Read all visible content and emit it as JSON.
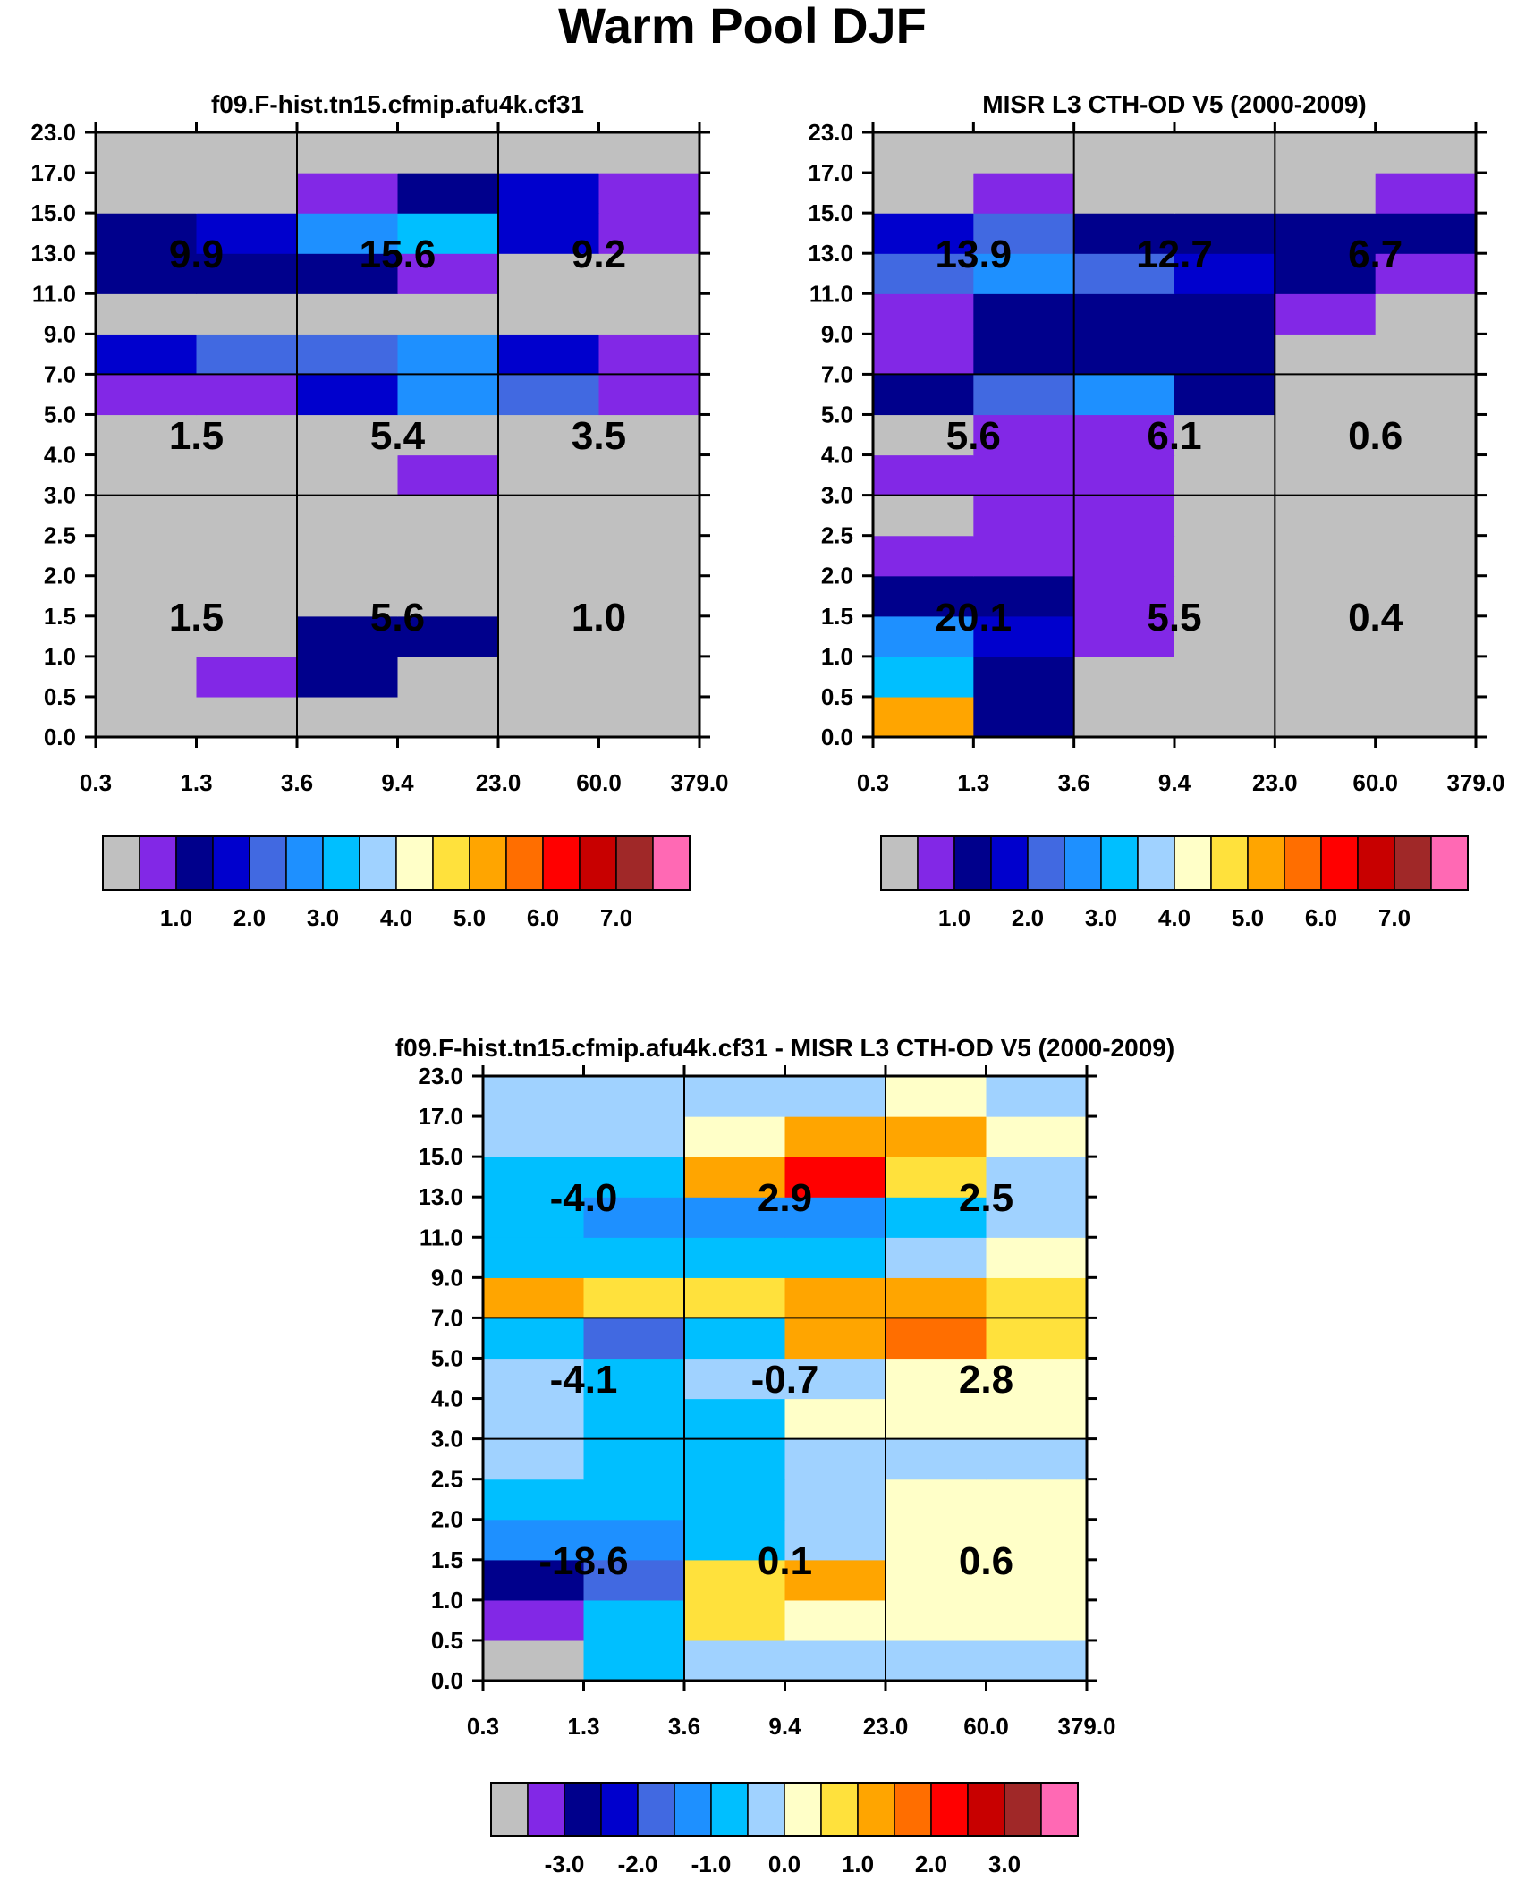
{
  "figure_title": "Warm Pool DJF",
  "x_ticks": [
    "0.3",
    "1.3",
    "3.6",
    "9.4",
    "23.0",
    "60.0",
    "379.0"
  ],
  "y_ticks": [
    "0.0",
    "0.5",
    "1.0",
    "1.5",
    "2.0",
    "2.5",
    "3.0",
    "4.0",
    "5.0",
    "7.0",
    "9.0",
    "11.0",
    "13.0",
    "15.0",
    "17.0",
    "23.0"
  ],
  "colors": {
    "gray": "#c0c0c0",
    "c1": "#8228e6",
    "c2": "#00008c",
    "c3": "#0000cd",
    "c4": "#4169e1",
    "c5": "#1e90ff",
    "c6": "#00bfff",
    "c7": "#a0d2ff",
    "c8": "#ffffc8",
    "c9": "#ffe13c",
    "c10": "#ffa500",
    "c11": "#ff6e00",
    "c12": "#ff0000",
    "c13": "#c80000",
    "c14": "#a02828",
    "c15": "#ff69b4"
  },
  "colorbars": {
    "abs": {
      "swatches": [
        "gray",
        "c1",
        "c2",
        "c3",
        "c4",
        "c5",
        "c6",
        "c7",
        "c8",
        "c9",
        "c10",
        "c11",
        "c12",
        "c13",
        "c14",
        "c15"
      ],
      "labels": [
        "1.0",
        "2.0",
        "3.0",
        "4.0",
        "5.0",
        "6.0",
        "7.0"
      ]
    },
    "diff": {
      "swatches": [
        "gray",
        "c1",
        "c2",
        "c3",
        "c4",
        "c5",
        "c6",
        "c7",
        "c8",
        "c9",
        "c10",
        "c11",
        "c12",
        "c13",
        "c14",
        "c15"
      ],
      "labels": [
        "-3.0",
        "-2.0",
        "-1.0",
        "0.0",
        "1.0",
        "2.0",
        "3.0"
      ]
    }
  },
  "chart_data": [
    {
      "type": "heatmap",
      "title": "f09.F-hist.tn15.cfmip.afu4k.cf31",
      "xlabel": "",
      "ylabel": "",
      "colorbar": "abs",
      "grid_rows_bottom_to_top": [
        [
          "gray",
          "gray",
          "gray",
          "gray",
          "gray",
          "gray"
        ],
        [
          "gray",
          "c1",
          "c2",
          "gray",
          "gray",
          "gray"
        ],
        [
          "gray",
          "gray",
          "c2",
          "c2",
          "gray",
          "gray"
        ],
        [
          "gray",
          "gray",
          "gray",
          "gray",
          "gray",
          "gray"
        ],
        [
          "gray",
          "gray",
          "gray",
          "gray",
          "gray",
          "gray"
        ],
        [
          "gray",
          "gray",
          "gray",
          "gray",
          "gray",
          "gray"
        ],
        [
          "gray",
          "gray",
          "gray",
          "c1",
          "gray",
          "gray"
        ],
        [
          "gray",
          "gray",
          "gray",
          "gray",
          "gray",
          "gray"
        ],
        [
          "c1",
          "c1",
          "c3",
          "c5",
          "c4",
          "c1"
        ],
        [
          "c3",
          "c4",
          "c4",
          "c5",
          "c3",
          "c1"
        ],
        [
          "gray",
          "gray",
          "gray",
          "gray",
          "gray",
          "gray"
        ],
        [
          "c2",
          "c2",
          "c2",
          "c1",
          "gray",
          "gray"
        ],
        [
          "c2",
          "c3",
          "c5",
          "c6",
          "c3",
          "c1"
        ],
        [
          "gray",
          "gray",
          "c1",
          "c2",
          "c3",
          "c1"
        ],
        [
          "gray",
          "gray",
          "gray",
          "gray",
          "gray",
          "gray"
        ]
      ],
      "block_totals": [
        {
          "label": "9.9",
          "col": 0,
          "band": "high"
        },
        {
          "label": "15.6",
          "col": 1,
          "band": "high"
        },
        {
          "label": "9.2",
          "col": 2,
          "band": "high"
        },
        {
          "label": "1.5",
          "col": 0,
          "band": "mid"
        },
        {
          "label": "5.4",
          "col": 1,
          "band": "mid"
        },
        {
          "label": "3.5",
          "col": 2,
          "band": "mid"
        },
        {
          "label": "1.5",
          "col": 0,
          "band": "low"
        },
        {
          "label": "5.6",
          "col": 1,
          "band": "low"
        },
        {
          "label": "1.0",
          "col": 2,
          "band": "low"
        }
      ]
    },
    {
      "type": "heatmap",
      "title": "MISR L3 CTH-OD V5 (2000-2009)",
      "xlabel": "",
      "ylabel": "",
      "colorbar": "abs",
      "grid_rows_bottom_to_top": [
        [
          "c10",
          "c2",
          "gray",
          "gray",
          "gray",
          "gray"
        ],
        [
          "c6",
          "c2",
          "gray",
          "gray",
          "gray",
          "gray"
        ],
        [
          "c5",
          "c3",
          "c1",
          "gray",
          "gray",
          "gray"
        ],
        [
          "c2",
          "c2",
          "c1",
          "gray",
          "gray",
          "gray"
        ],
        [
          "c1",
          "c1",
          "c1",
          "gray",
          "gray",
          "gray"
        ],
        [
          "gray",
          "c1",
          "c1",
          "gray",
          "gray",
          "gray"
        ],
        [
          "c1",
          "c1",
          "c1",
          "gray",
          "gray",
          "gray"
        ],
        [
          "gray",
          "c1",
          "c1",
          "gray",
          "gray",
          "gray"
        ],
        [
          "c2",
          "c4",
          "c5",
          "c2",
          "gray",
          "gray"
        ],
        [
          "c1",
          "c2",
          "c2",
          "c2",
          "gray",
          "gray"
        ],
        [
          "c1",
          "c2",
          "c2",
          "c2",
          "c1",
          "gray"
        ],
        [
          "c4",
          "c5",
          "c4",
          "c3",
          "c2",
          "c1"
        ],
        [
          "c3",
          "c4",
          "c2",
          "c2",
          "c2",
          "c2"
        ],
        [
          "gray",
          "c1",
          "gray",
          "gray",
          "gray",
          "c1"
        ],
        [
          "gray",
          "gray",
          "gray",
          "gray",
          "gray",
          "gray"
        ]
      ],
      "block_totals": [
        {
          "label": "13.9",
          "col": 0,
          "band": "high"
        },
        {
          "label": "12.7",
          "col": 1,
          "band": "high"
        },
        {
          "label": "6.7",
          "col": 2,
          "band": "high"
        },
        {
          "label": "5.6",
          "col": 0,
          "band": "mid"
        },
        {
          "label": "6.1",
          "col": 1,
          "band": "mid"
        },
        {
          "label": "0.6",
          "col": 2,
          "band": "mid"
        },
        {
          "label": "20.1",
          "col": 0,
          "band": "low"
        },
        {
          "label": "5.5",
          "col": 1,
          "band": "low"
        },
        {
          "label": "0.4",
          "col": 2,
          "band": "low"
        }
      ]
    },
    {
      "type": "heatmap",
      "title": "f09.F-hist.tn15.cfmip.afu4k.cf31 - MISR L3 CTH-OD V5 (2000-2009)",
      "xlabel": "",
      "ylabel": "",
      "colorbar": "diff",
      "grid_rows_bottom_to_top": [
        [
          "gray",
          "c6",
          "c7",
          "c7",
          "c7",
          "c7"
        ],
        [
          "c1",
          "c6",
          "c9",
          "c8",
          "c8",
          "c8"
        ],
        [
          "c2",
          "c4",
          "c9",
          "c10",
          "c8",
          "c8"
        ],
        [
          "c5",
          "c5",
          "c6",
          "c7",
          "c8",
          "c8"
        ],
        [
          "c6",
          "c6",
          "c6",
          "c7",
          "c8",
          "c8"
        ],
        [
          "c7",
          "c6",
          "c6",
          "c7",
          "c7",
          "c7"
        ],
        [
          "c7",
          "c6",
          "c6",
          "c8",
          "c8",
          "c8"
        ],
        [
          "c7",
          "c6",
          "c7",
          "c7",
          "c8",
          "c8"
        ],
        [
          "c6",
          "c4",
          "c6",
          "c10",
          "c11",
          "c9"
        ],
        [
          "c10",
          "c9",
          "c9",
          "c10",
          "c10",
          "c9"
        ],
        [
          "c6",
          "c6",
          "c6",
          "c6",
          "c7",
          "c8"
        ],
        [
          "c6",
          "c5",
          "c5",
          "c5",
          "c6",
          "c7"
        ],
        [
          "c6",
          "c6",
          "c10",
          "c12",
          "c9",
          "c7"
        ],
        [
          "c7",
          "c7",
          "c8",
          "c10",
          "c10",
          "c8"
        ],
        [
          "c7",
          "c7",
          "c7",
          "c7",
          "c8",
          "c7"
        ]
      ],
      "block_totals": [
        {
          "label": "-4.0",
          "col": 0,
          "band": "high"
        },
        {
          "label": "2.9",
          "col": 1,
          "band": "high"
        },
        {
          "label": "2.5",
          "col": 2,
          "band": "high"
        },
        {
          "label": "-4.1",
          "col": 0,
          "band": "mid"
        },
        {
          "label": "-0.7",
          "col": 1,
          "band": "mid"
        },
        {
          "label": "2.8",
          "col": 2,
          "band": "mid"
        },
        {
          "label": "-18.6",
          "col": 0,
          "band": "low"
        },
        {
          "label": "0.1",
          "col": 1,
          "band": "low"
        },
        {
          "label": "0.6",
          "col": 2,
          "band": "low"
        }
      ]
    }
  ]
}
